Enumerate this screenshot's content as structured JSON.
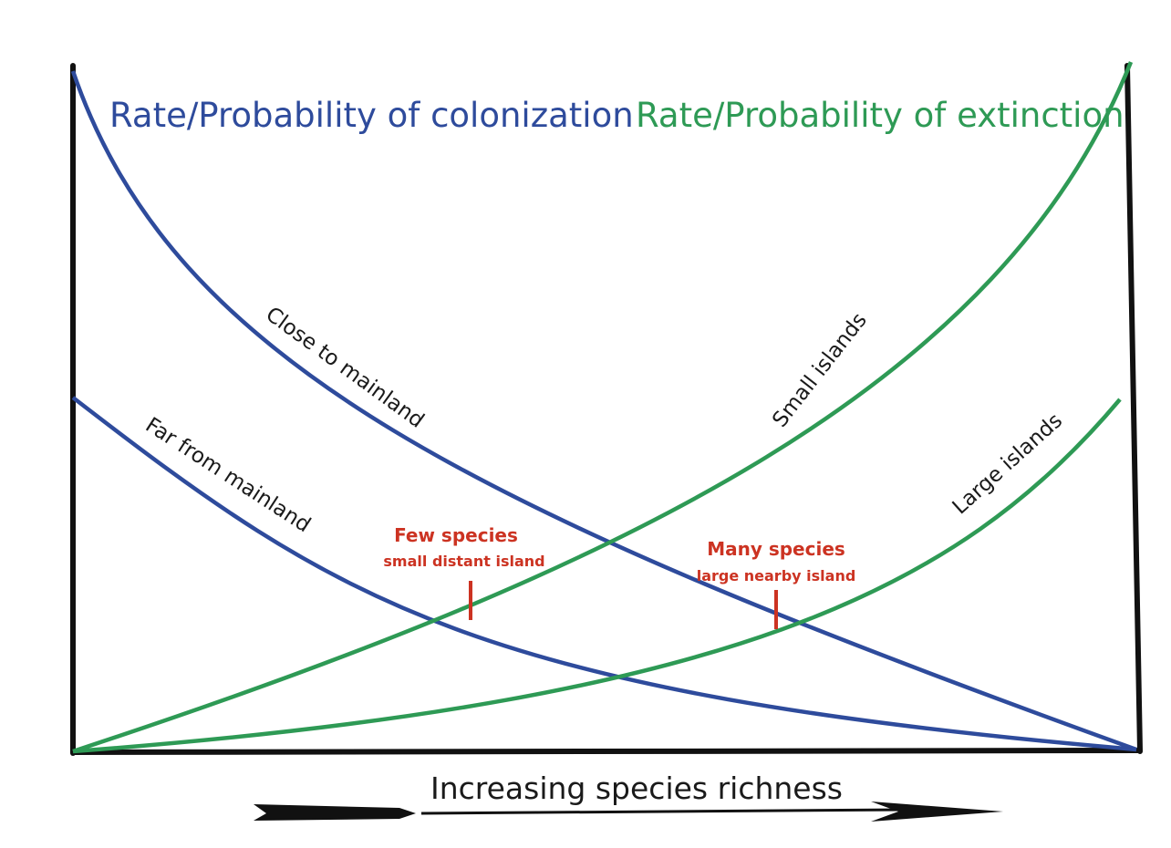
{
  "titles": {
    "colonization": "Rate/Probability of colonization",
    "extinction": "Rate/Probability of extinction"
  },
  "curves": {
    "close_to_mainland": "Close to mainland",
    "far_from_mainland": "Far from mainland",
    "small_islands": "Small islands",
    "large_islands": "Large islands"
  },
  "equilibria": {
    "few": {
      "title": "Few species",
      "subtitle": "small distant island"
    },
    "many": {
      "title": "Many species",
      "subtitle": "large nearby island"
    }
  },
  "x_axis": {
    "label": "Increasing species richness"
  },
  "colors": {
    "colonization": "#2e4b9c",
    "extinction": "#2e9a55",
    "equilibrium": "#cc3322",
    "axis": "#111111"
  }
}
